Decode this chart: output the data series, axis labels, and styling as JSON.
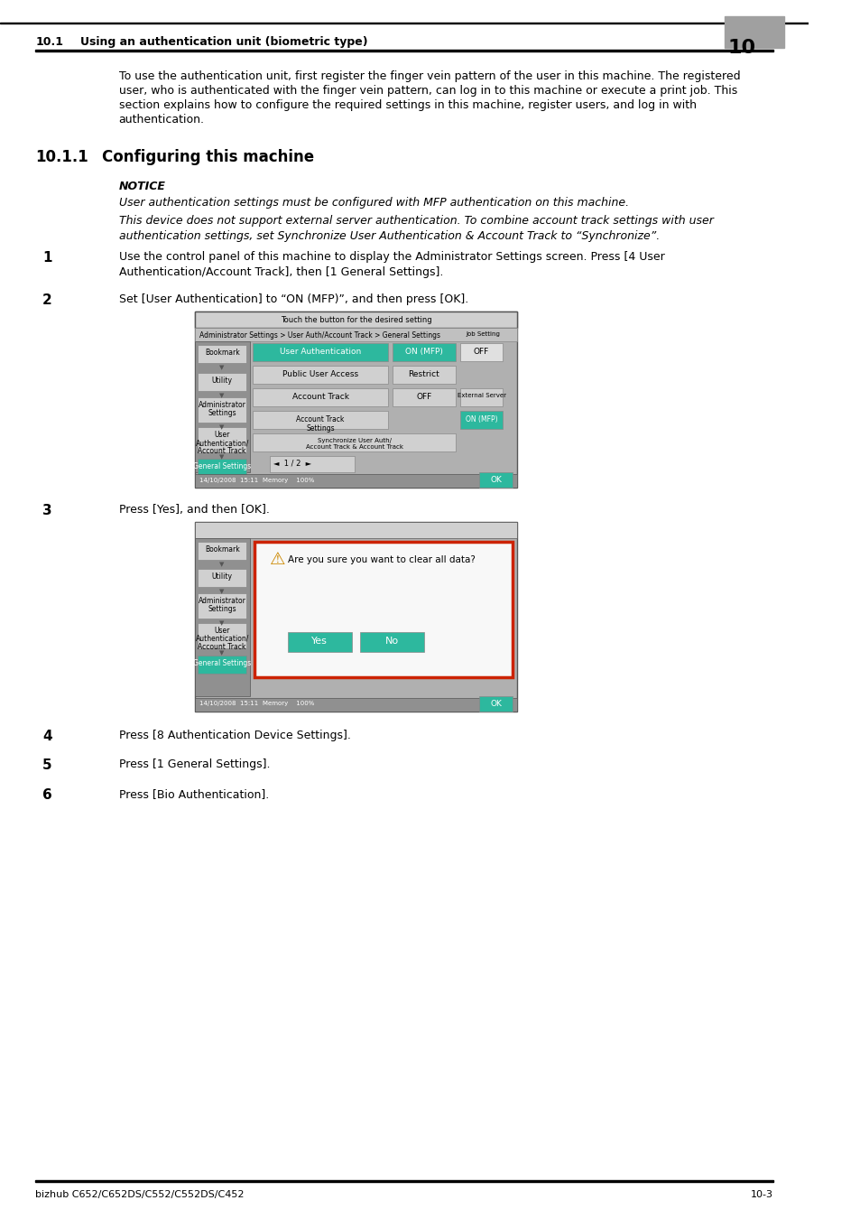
{
  "header_section": "10.1    Using an authentication unit (biometric type)",
  "header_number": "10",
  "intro_text": "To use the authentication unit, first register the finger vein pattern of the user in this machine. The registered\nuser, who is authenticated with the finger vein pattern, can log in to this machine or execute a print job. This\nsection explains how to configure the required settings in this machine, register users, and log in with\nauthentication.",
  "section_title": "10.1.1    Configuring this machine",
  "notice_title": "NOTICE",
  "notice_line1": "User authentication settings must be configured with MFP authentication on this machine.",
  "notice_line2": "This device does not support external server authentication. To combine account track settings with user\nauthentication settings, set Synchronize User Authentication & Account Track to “Synchronize”.",
  "step1_num": "1",
  "step1_text": "Use the control panel of this machine to display the Administrator Settings screen. Press [4 User\nAuthentication/Account Track], then [1 General Settings].",
  "step2_num": "2",
  "step2_text": "Set [User Authentication] to “ON (MFP)”, and then press [OK].",
  "step3_num": "3",
  "step3_text": "Press [Yes], and then [OK].",
  "step4_num": "4",
  "step4_text": "Press [8 Authentication Device Settings].",
  "step5_num": "5",
  "step5_text": "Press [1 General Settings].",
  "step6_num": "6",
  "step6_text": "Press [Bio Authentication].",
  "footer_left": "bizhub C652/C652DS/C552/C552DS/C452",
  "footer_right": "10-3",
  "bg_color": "#ffffff",
  "text_color": "#000000",
  "header_bg": "#a0a0a0",
  "teal_color": "#2db89e",
  "screen_bg": "#c8c8c8",
  "screen_dark": "#a0a0a0"
}
